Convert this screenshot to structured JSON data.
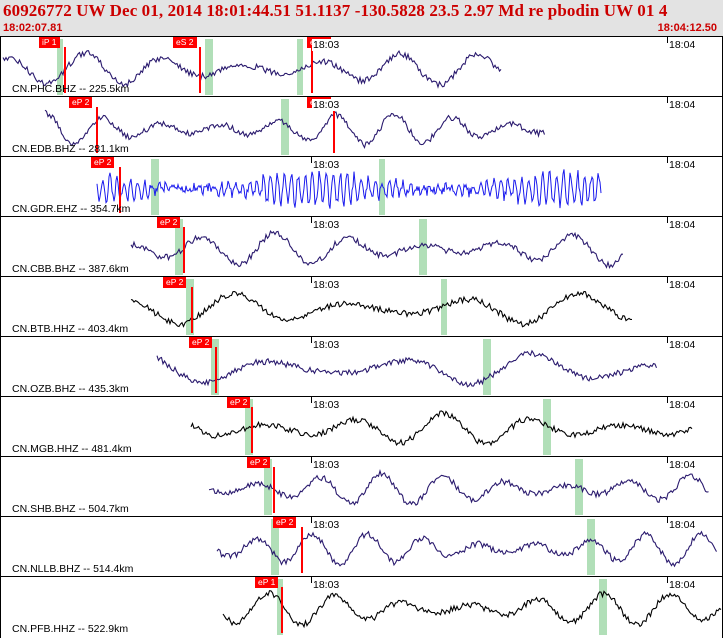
{
  "header": {
    "title": "60926772 UW Dec 01, 2014 18:01:44.51   51.1137 -130.5828 23.5 2.97 Md re pbodin UW 01    4",
    "time_start": "18:02:07.81",
    "time_end": "18:04:12.50"
  },
  "colors": {
    "header_text": "#cc0000",
    "header_bg": "#e3e3e3",
    "pick_flag": "#ff0000",
    "s_wave_band": "#a8dcb0",
    "trace_default": "#2a1a6e",
    "trace_blue": "#1a1aee",
    "trace_black": "#000000"
  },
  "tick_labels": {
    "t1": "18:03",
    "t2": "18:04"
  },
  "traces": [
    {
      "station": "CN.PHC.BHZ -- 225.5km",
      "color": "#2a1a6e",
      "picks": [
        {
          "label": "iP 1"
        },
        {
          "label": "eS 2"
        },
        {
          "label": "eS 2"
        }
      ]
    },
    {
      "station": "CN.EDB.BHZ -- 281.1km",
      "color": "#2a1a6e",
      "picks": [
        {
          "label": "eP 2"
        },
        {
          "label": "eS 2"
        }
      ]
    },
    {
      "station": "CN.GDR.EHZ -- 354.7km",
      "color": "#1a1aee",
      "picks": [
        {
          "label": "eP 2"
        }
      ]
    },
    {
      "station": "CN.CBB.BHZ -- 387.6km",
      "color": "#2a1a6e",
      "picks": [
        {
          "label": "eP 2"
        }
      ]
    },
    {
      "station": "CN.BTB.HHZ -- 403.4km",
      "color": "#000000",
      "picks": [
        {
          "label": "eP 2"
        }
      ]
    },
    {
      "station": "CN.OZB.BHZ -- 435.3km",
      "color": "#2a1a6e",
      "picks": [
        {
          "label": "eP 2"
        }
      ]
    },
    {
      "station": "CN.MGB.HHZ -- 481.4km",
      "color": "#000000",
      "picks": [
        {
          "label": "eP 2"
        }
      ]
    },
    {
      "station": "CN.SHB.BHZ -- 504.7km",
      "color": "#2a1a6e",
      "picks": [
        {
          "label": "eP 2"
        }
      ]
    },
    {
      "station": "CN.NLLB.BHZ -- 514.4km",
      "color": "#2a1a6e",
      "picks": [
        {
          "label": "eP 2"
        }
      ]
    },
    {
      "station": "CN.PFB.HHZ -- 522.9km",
      "color": "#000000",
      "picks": [
        {
          "label": "eP 1"
        }
      ]
    }
  ]
}
